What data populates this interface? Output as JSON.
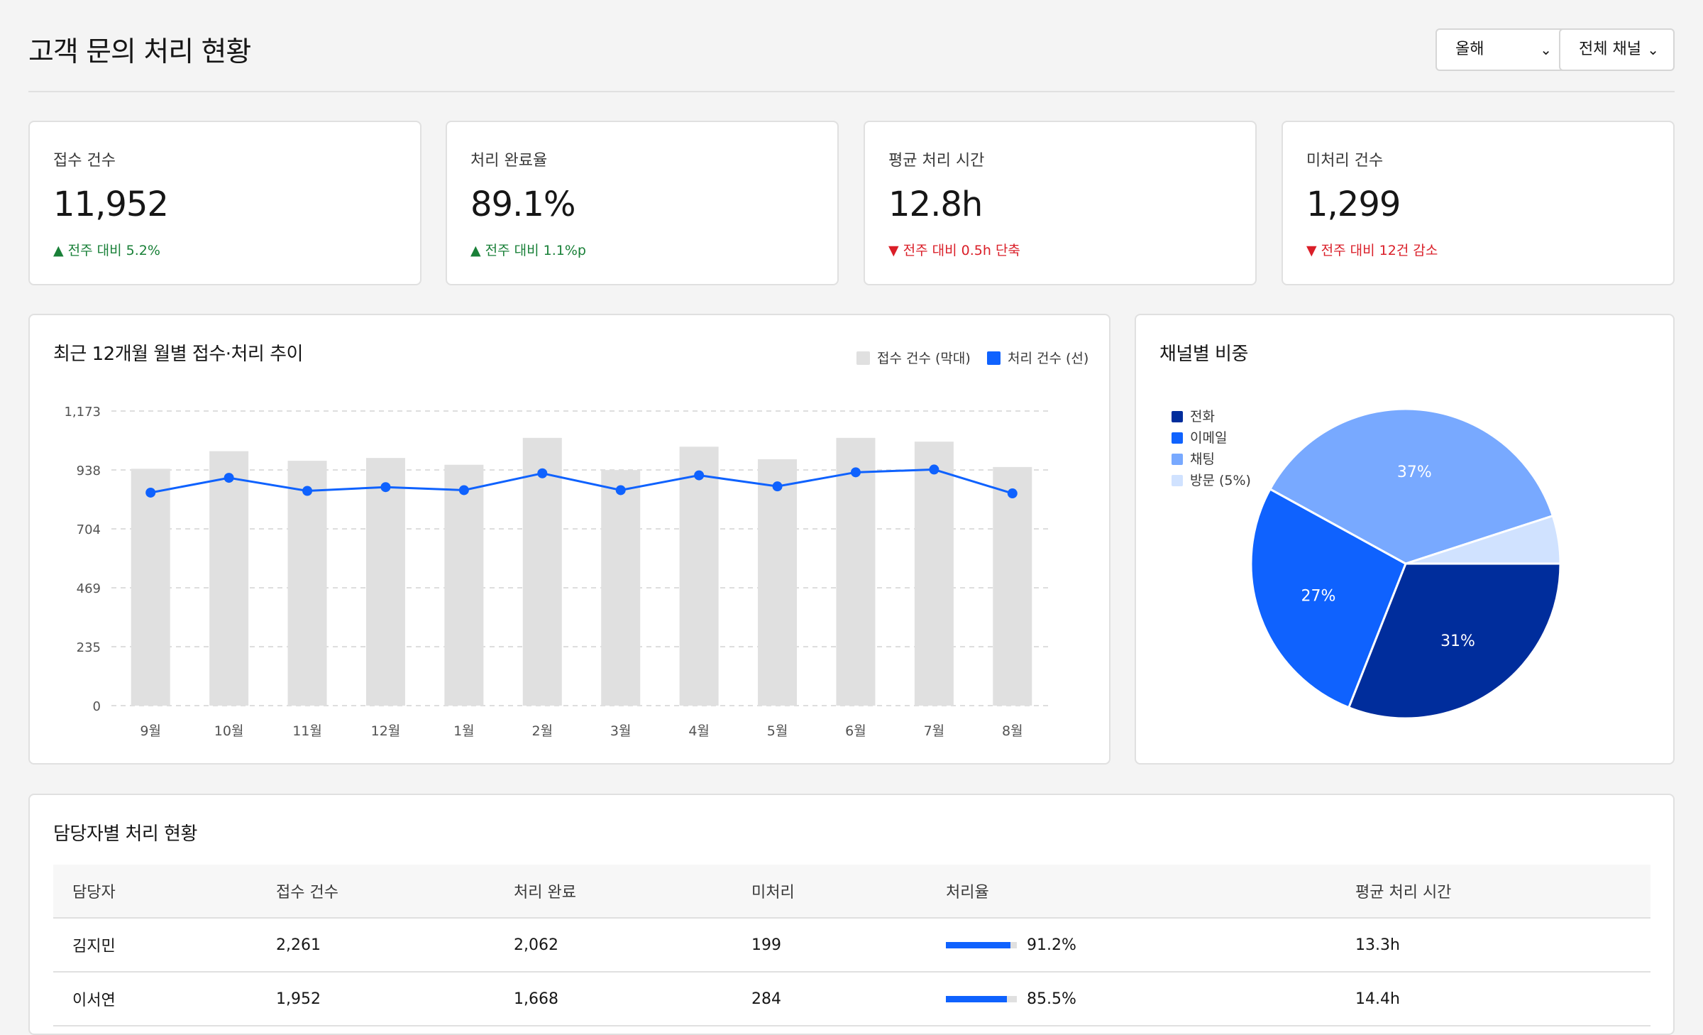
{
  "header": {
    "title": "고객 문의 처리 현황",
    "year_select": "올해",
    "channel_select": "전체 채널"
  },
  "kpis": [
    {
      "label": "접수 건수",
      "value": "11,952",
      "delta": "▲ 전주 대비 5.2%",
      "trend": "up"
    },
    {
      "label": "처리 완료율",
      "value": "89.1%",
      "delta": "▲ 전주 대비 1.1%p",
      "trend": "up"
    },
    {
      "label": "평균 처리 시간",
      "value": "12.8h",
      "delta": "▼ 전주 대비 0.5h 단축",
      "trend": "down"
    },
    {
      "label": "미처리 건수",
      "value": "1,299",
      "delta": "▼ 전주 대비 12건 감소",
      "trend": "down"
    }
  ],
  "trend_chart": {
    "title": "최근 12개월 월별 접수·처리 추이",
    "legend_received": "접수 건수 (막대)",
    "legend_processed": "처리 건수 (선)"
  },
  "pie_chart": {
    "title": "채널별 비중"
  },
  "agents_table": {
    "title": "담당자별 처리 현황",
    "columns": [
      "담당자",
      "접수 건수",
      "처리 완료",
      "미처리",
      "처리율",
      "평균 처리 시간"
    ],
    "rows": [
      {
        "name": "김지민",
        "received": "2,261",
        "done": "2,062",
        "pending": "199",
        "rate": 0.912,
        "rate_label": "91.2%",
        "avg_time": "13.3h"
      },
      {
        "name": "이서연",
        "received": "1,952",
        "done": "1,668",
        "pending": "284",
        "rate": 0.855,
        "rate_label": "85.5%",
        "avg_time": "14.4h"
      }
    ]
  },
  "chart_data": [
    {
      "type": "bar",
      "title": "최근 12개월 월별 접수·처리 추이",
      "categories": [
        "9월",
        "10월",
        "11월",
        "12월",
        "1월",
        "2월",
        "3월",
        "4월",
        "5월",
        "6월",
        "7월",
        "8월"
      ],
      "yticks": [
        "1,173",
        "938",
        "704",
        "469",
        "235",
        "0"
      ],
      "ylim": [
        0,
        1173
      ],
      "grid": true,
      "legend": "top-right",
      "series": [
        {
          "name": "접수 건수 (막대)",
          "type": "bar",
          "color": "#e0e0e0",
          "values": [
            943,
            1013,
            975,
            986,
            959,
            1066,
            938,
            1031,
            981,
            1066,
            1051,
            950
          ]
        },
        {
          "name": "처리 건수 (선)",
          "type": "line",
          "color": "#0f62fe",
          "values": [
            848,
            907,
            855,
            870,
            858,
            925,
            858,
            917,
            873,
            929,
            940,
            845
          ]
        }
      ]
    },
    {
      "type": "pie",
      "title": "채널별 비중",
      "legend": "left",
      "slices": [
        {
          "label": "전화",
          "value": 31,
          "color": "#002d9c",
          "text": "31%"
        },
        {
          "label": "이메일",
          "value": 27,
          "color": "#0f62fe",
          "text": "27%"
        },
        {
          "label": "채팅",
          "value": 37,
          "color": "#78a9ff",
          "text": "37%"
        },
        {
          "label": "방문 (5%)",
          "value": 5,
          "color": "#d0e2ff",
          "text": ""
        }
      ]
    }
  ]
}
